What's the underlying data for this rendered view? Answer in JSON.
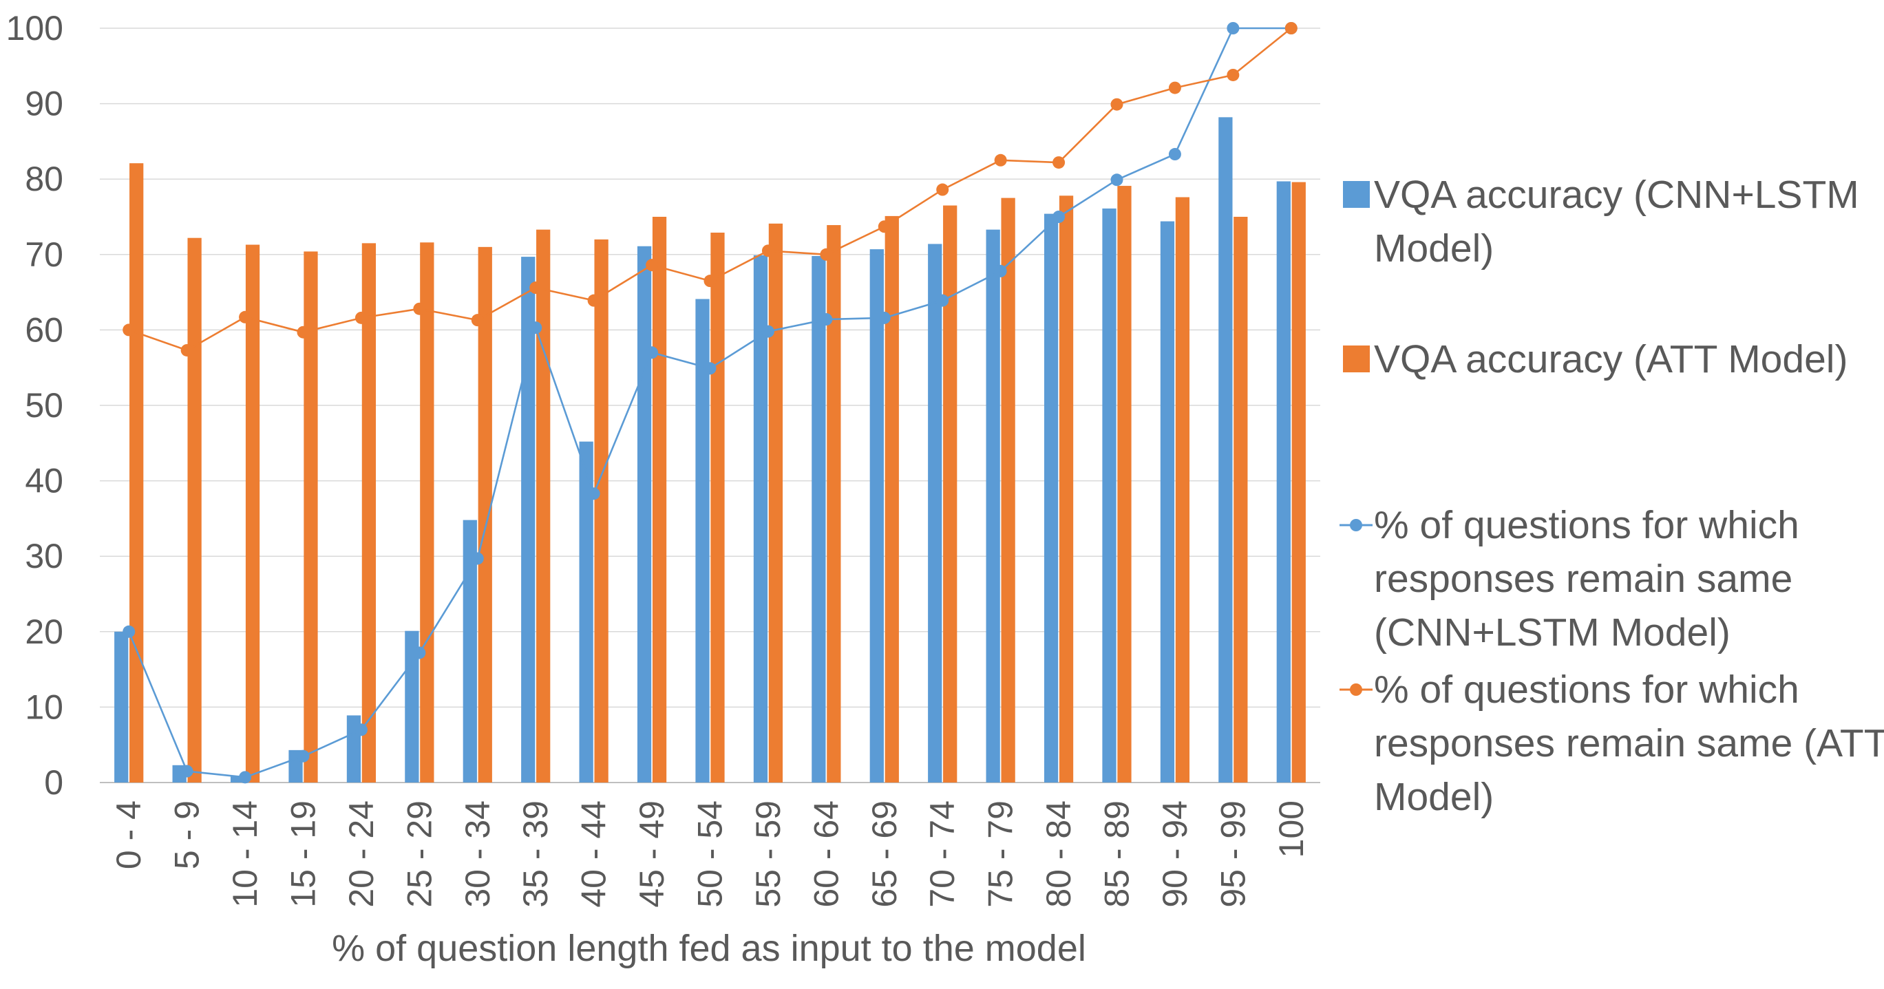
{
  "chart_data": {
    "type": "bar+line",
    "title": "",
    "xlabel": "% of question length fed as input to the model",
    "ylabel": "",
    "ylim": [
      0,
      100
    ],
    "yticks": [
      0,
      10,
      20,
      30,
      40,
      50,
      60,
      70,
      80,
      90,
      100
    ],
    "grid": true,
    "legend_position": "right",
    "categories": [
      "0 - 4",
      "5 - 9",
      "10 - 14",
      "15 - 19",
      "20 - 24",
      "25 - 29",
      "30 - 34",
      "35 - 39",
      "40 - 44",
      "45 - 49",
      "50 - 54",
      "55 - 59",
      "60 - 64",
      "65 - 69",
      "70 - 74",
      "75 - 79",
      "80 - 84",
      "85 - 89",
      "90 - 94",
      "95 - 99",
      "100"
    ],
    "series": [
      {
        "name": "VQA accuracy (CNN+LSTM Model)",
        "type": "bar",
        "color": "#5b9bd5",
        "values": [
          20.0,
          2.3,
          0.8,
          4.3,
          8.9,
          20.1,
          34.8,
          69.7,
          45.2,
          71.1,
          64.1,
          69.9,
          69.8,
          70.7,
          71.4,
          73.3,
          75.4,
          76.1,
          74.4,
          88.2,
          79.7
        ]
      },
      {
        "name": "VQA accuracy (ATT Model)",
        "type": "bar",
        "color": "#ed7d31",
        "values": [
          82.1,
          72.2,
          71.3,
          70.4,
          71.5,
          71.6,
          71.0,
          73.3,
          72.0,
          75.0,
          72.9,
          74.1,
          73.9,
          75.1,
          76.5,
          77.5,
          77.8,
          79.1,
          77.6,
          75.0,
          79.6
        ]
      },
      {
        "name": "% of questions for which responses remain same (CNN+LSTM Model)",
        "type": "line",
        "color": "#5b9bd5",
        "values": [
          20.0,
          1.5,
          0.7,
          3.5,
          7.0,
          17.2,
          29.7,
          60.3,
          38.3,
          57.0,
          54.9,
          59.8,
          61.4,
          61.6,
          63.9,
          67.8,
          75.0,
          79.9,
          83.3,
          100.0,
          100.0
        ]
      },
      {
        "name": "% of questions for which responses remain same (ATT Model)",
        "type": "line",
        "color": "#ed7d31",
        "values": [
          60.0,
          57.3,
          61.7,
          59.7,
          61.6,
          62.8,
          61.3,
          65.6,
          63.9,
          68.6,
          66.5,
          70.5,
          70.0,
          73.7,
          78.6,
          82.5,
          82.2,
          89.9,
          92.1,
          93.8,
          100.0
        ]
      }
    ]
  }
}
